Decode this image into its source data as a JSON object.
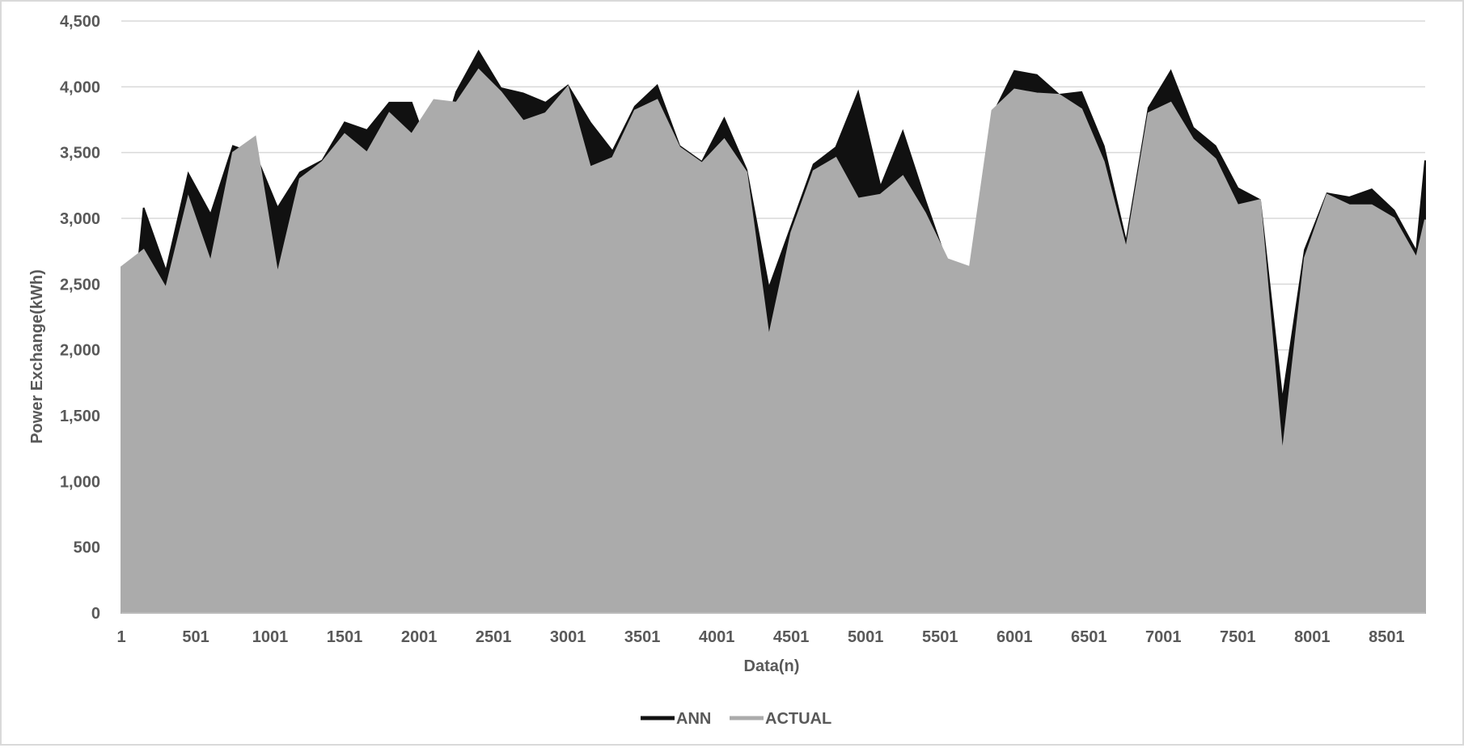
{
  "chart_data": {
    "type": "area",
    "title": "",
    "xlabel": "Data(n)",
    "ylabel": "Power Exchange(kWh)",
    "xlim": [
      1,
      8760
    ],
    "ylim": [
      0,
      4500
    ],
    "y_ticks": [
      0,
      500,
      1000,
      1500,
      2000,
      2500,
      3000,
      3500,
      4000,
      4500
    ],
    "y_tick_labels": [
      "0",
      "500",
      "1,000",
      "1,500",
      "2,000",
      "2,500",
      "3,000",
      "3,500",
      "4,000",
      "4,500"
    ],
    "x_ticks": [
      1,
      501,
      1001,
      1501,
      2001,
      2501,
      3001,
      3501,
      4001,
      4501,
      5001,
      5501,
      6001,
      6501,
      7001,
      7501,
      8001,
      8501
    ],
    "x_tick_labels": [
      "1",
      "501",
      "1001",
      "1501",
      "2001",
      "2501",
      "3001",
      "3501",
      "4001",
      "4501",
      "5001",
      "5501",
      "6001",
      "6501",
      "7001",
      "7501",
      "8001",
      "8501"
    ],
    "grid": "horizontal",
    "legend_position": "bottom",
    "series_colors": {
      "ANN": "#111111",
      "ACTUAL": "#ababab"
    },
    "x": [
      1,
      151,
      301,
      451,
      601,
      751,
      901,
      1051,
      1201,
      1351,
      1501,
      1651,
      1801,
      1951,
      2101,
      2251,
      2401,
      2551,
      2701,
      2851,
      3001,
      3151,
      3301,
      3451,
      3601,
      3751,
      3901,
      4051,
      4201,
      4351,
      4501,
      4651,
      4801,
      4951,
      5101,
      5251,
      5401,
      5551,
      5701,
      5851,
      6001,
      6151,
      6301,
      6451,
      6601,
      6751,
      6901,
      7051,
      7201,
      7351,
      7501,
      7651,
      7801,
      7951,
      8101,
      8251,
      8401,
      8551,
      8701,
      8760
    ],
    "series": [
      {
        "name": "ANN",
        "values": [
          1360,
          3080,
          2600,
          3340,
          3030,
          3550,
          3490,
          3080,
          3350,
          3440,
          3730,
          3670,
          3880,
          3880,
          3410,
          3960,
          4270,
          3990,
          3950,
          3880,
          4010,
          3730,
          3510,
          3850,
          4010,
          3550,
          3430,
          3760,
          3370,
          2470,
          2940,
          3410,
          3540,
          3960,
          3240,
          3660,
          3140,
          2650,
          2400,
          3780,
          4120,
          4090,
          3940,
          3960,
          3550,
          2820,
          3840,
          4120,
          3690,
          3550,
          3230,
          3140,
          1620,
          2760,
          3190,
          3160,
          3220,
          3060,
          2750,
          3440
        ]
      },
      {
        "name": "ACTUAL",
        "values": [
          2630,
          2760,
          2470,
          3160,
          2670,
          3500,
          3620,
          2580,
          3300,
          3430,
          3640,
          3500,
          3800,
          3640,
          3900,
          3880,
          4130,
          3960,
          3740,
          3800,
          4000,
          3390,
          3460,
          3820,
          3900,
          3540,
          3420,
          3600,
          3350,
          2100,
          2890,
          3360,
          3460,
          3150,
          3180,
          3320,
          3040,
          2690,
          2630,
          3820,
          3980,
          3950,
          3940,
          3830,
          3430,
          2770,
          3800,
          3880,
          3600,
          3450,
          3100,
          3140,
          1210,
          2700,
          3180,
          3100,
          3100,
          3000,
          2700,
          2990
        ]
      }
    ]
  }
}
